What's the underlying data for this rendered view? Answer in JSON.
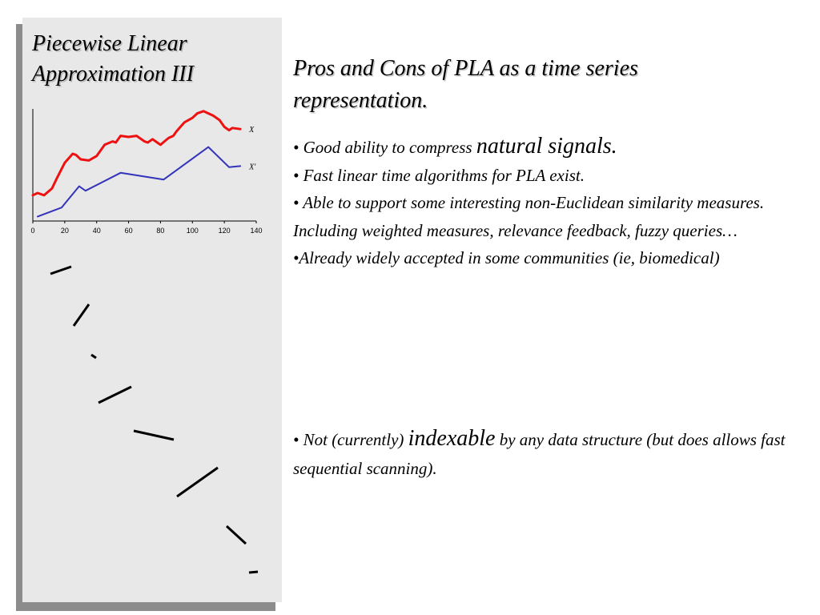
{
  "sidebar": {
    "title_lines": [
      "Piecewise Linear",
      "Approximation III"
    ]
  },
  "main": {
    "title_lines": [
      "Pros and Cons of PLA as a time series",
      "representation."
    ],
    "pros": [
      {
        "before": "• Good ability to compress ",
        "emph": "natural signals.",
        "after": ""
      },
      {
        "before": "• Fast linear time algorithms for PLA exist.",
        "emph": "",
        "after": ""
      },
      {
        "before": "• Able to support some interesting non-Euclidean similarity measures. Including weighted measures, relevance feedback, fuzzy queries…",
        "emph": "",
        "after": ""
      },
      {
        "before": "•Already widely accepted in some communities (ie, biomedical)",
        "emph": "",
        "after": ""
      }
    ],
    "cons": [
      {
        "before": "• Not (currently) ",
        "emph": "indexable",
        "after": " by any data structure (but does allows fast sequential scanning)."
      }
    ]
  },
  "colors": {
    "sidebar_bg": "#e8e8e8",
    "sidebar_shadow": "#8c8c8c",
    "original_series": "#ee1111",
    "approx_series": "#3333bb",
    "segment_stroke": "#000000"
  },
  "chart_data": {
    "type": "line",
    "x_ticks": [
      0,
      20,
      40,
      60,
      80,
      100,
      120,
      140
    ],
    "xlim": [
      0,
      140
    ],
    "ylim": [
      0,
      10
    ],
    "grid": false,
    "legend": "series labels at right end of lines",
    "series": [
      {
        "name": "X",
        "color": "#ee1111",
        "points": [
          [
            0,
            2.3
          ],
          [
            3,
            2.5
          ],
          [
            7,
            2.3
          ],
          [
            12,
            2.9
          ],
          [
            15,
            3.8
          ],
          [
            20,
            5.2
          ],
          [
            25,
            6.0
          ],
          [
            27,
            5.9
          ],
          [
            30,
            5.5
          ],
          [
            35,
            5.4
          ],
          [
            40,
            5.8
          ],
          [
            45,
            6.8
          ],
          [
            50,
            7.1
          ],
          [
            52,
            7.0
          ],
          [
            55,
            7.6
          ],
          [
            60,
            7.5
          ],
          [
            65,
            7.6
          ],
          [
            70,
            7.1
          ],
          [
            72,
            7.0
          ],
          [
            75,
            7.3
          ],
          [
            78,
            7.0
          ],
          [
            80,
            6.8
          ],
          [
            85,
            7.4
          ],
          [
            88,
            7.6
          ],
          [
            90,
            8.0
          ],
          [
            95,
            8.8
          ],
          [
            100,
            9.2
          ],
          [
            103,
            9.6
          ],
          [
            107,
            9.8
          ],
          [
            110,
            9.6
          ],
          [
            113,
            9.4
          ],
          [
            117,
            9.0
          ],
          [
            120,
            8.4
          ],
          [
            123,
            8.1
          ],
          [
            125,
            8.3
          ],
          [
            130,
            8.2
          ]
        ]
      },
      {
        "name": "X'",
        "color": "#3333bb",
        "points": [
          [
            3,
            0.4
          ],
          [
            18,
            1.2
          ],
          [
            29,
            3.1
          ],
          [
            33,
            2.7
          ],
          [
            55,
            4.3
          ],
          [
            82,
            3.7
          ],
          [
            110,
            6.6
          ],
          [
            123,
            4.8
          ],
          [
            130,
            4.9
          ]
        ]
      }
    ]
  },
  "segments": [
    [
      [
        35,
        32
      ],
      [
        61,
        23
      ]
    ],
    [
      [
        64,
        97
      ],
      [
        83,
        70
      ]
    ],
    [
      [
        86,
        133
      ],
      [
        92,
        137
      ]
    ],
    [
      [
        95,
        193
      ],
      [
        136,
        173
      ]
    ],
    [
      [
        139,
        228
      ],
      [
        189,
        239
      ]
    ],
    [
      [
        193,
        310
      ],
      [
        244,
        274
      ]
    ],
    [
      [
        255,
        347
      ],
      [
        279,
        369
      ]
    ],
    [
      [
        283,
        405
      ],
      [
        294,
        404
      ]
    ]
  ]
}
